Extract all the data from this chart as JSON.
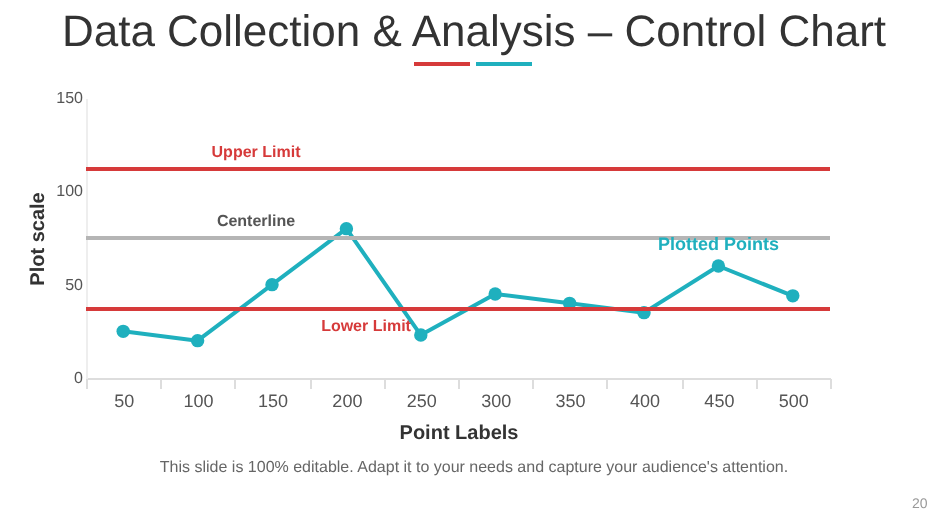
{
  "chart_data": {
    "type": "line",
    "title": "Data Collection & Analysis – Control Chart",
    "xlabel": "Point Labels",
    "ylabel": "Plot scale",
    "categories": [
      "50",
      "100",
      "150",
      "200",
      "250",
      "300",
      "350",
      "400",
      "450",
      "500"
    ],
    "series": [
      {
        "name": "Plotted Points",
        "color": "#1fb0be",
        "values": [
          25,
          20,
          50,
          80,
          23,
          45,
          40,
          35,
          60,
          44
        ]
      }
    ],
    "ylim": [
      0,
      150
    ],
    "yticks": [
      0,
      50,
      100,
      150
    ],
    "grid": false,
    "legend": false,
    "marker": "circle",
    "line_style": "solid",
    "ref_lines": [
      {
        "axis": "y",
        "value": 112,
        "label": "Upper Limit",
        "color": "#d63a3a"
      },
      {
        "axis": "y",
        "value": 75,
        "label": "Centerline",
        "color": "#b5b5b5"
      },
      {
        "axis": "y",
        "value": 37,
        "label": "Lower Limit",
        "color": "#d63a3a"
      }
    ],
    "annotations": [
      "This slide is 100% editable. Adapt it to your needs and capture your audience's attention.",
      "20"
    ]
  }
}
